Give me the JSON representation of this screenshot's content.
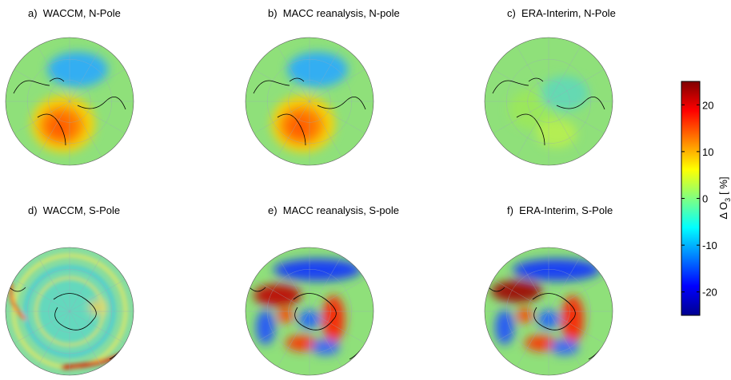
{
  "panels": [
    {
      "title": "a)  WACCM, N-Pole"
    },
    {
      "title": "b)  MACC reanalysis, N-pole"
    },
    {
      "title": "c)  ERA-Interim, N-Pole"
    },
    {
      "title": "d)  WACCM, S-Pole"
    },
    {
      "title": "e)  MACC reanalysis, S-pole"
    },
    {
      "title": "f)  ERA-Interim, S-Pole"
    }
  ],
  "colorbar": {
    "label": [
      "Δ O",
      "3",
      "[ %]"
    ],
    "clim": [
      -25,
      25
    ],
    "ticks": [
      20,
      10,
      0,
      -10,
      -20
    ]
  }
}
